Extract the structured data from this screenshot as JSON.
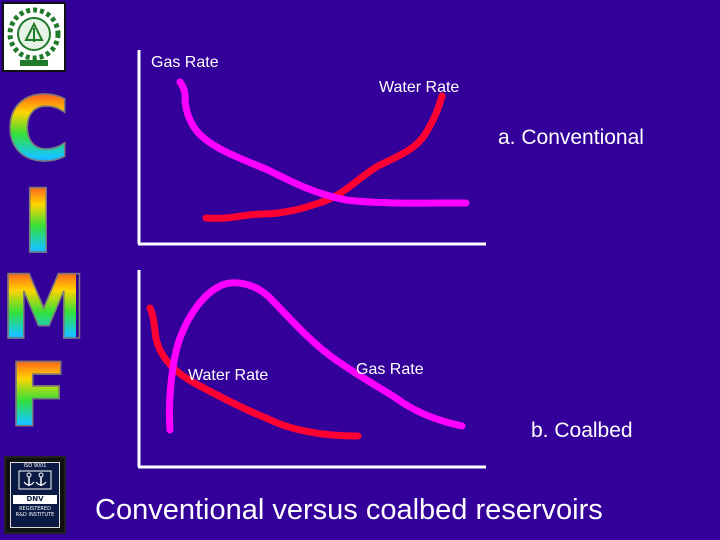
{
  "logos": {
    "top_icon": "institute-gear-emblem-icon",
    "bottom_icon": "dnv-certification-icon",
    "bottom_text": [
      "ISO 9001",
      "DNV",
      "REGISTERED",
      "R&D INSTITUTE"
    ]
  },
  "sidebar": {
    "letters": [
      "C",
      "I",
      "M",
      "F"
    ]
  },
  "panel_a": {
    "gas_label": "Gas Rate",
    "water_label": "Water Rate",
    "caption": "a. Conventional"
  },
  "panel_b": {
    "water_label": "Water Rate",
    "gas_label": "Gas Rate",
    "caption": "b. Coalbed"
  },
  "colors": {
    "background": "#330099",
    "gas_curve": "#ff00ff",
    "water_curve": "#ff0033",
    "axes": "#ffffff"
  },
  "slide_title": "Conventional versus coalbed reservoirs"
}
